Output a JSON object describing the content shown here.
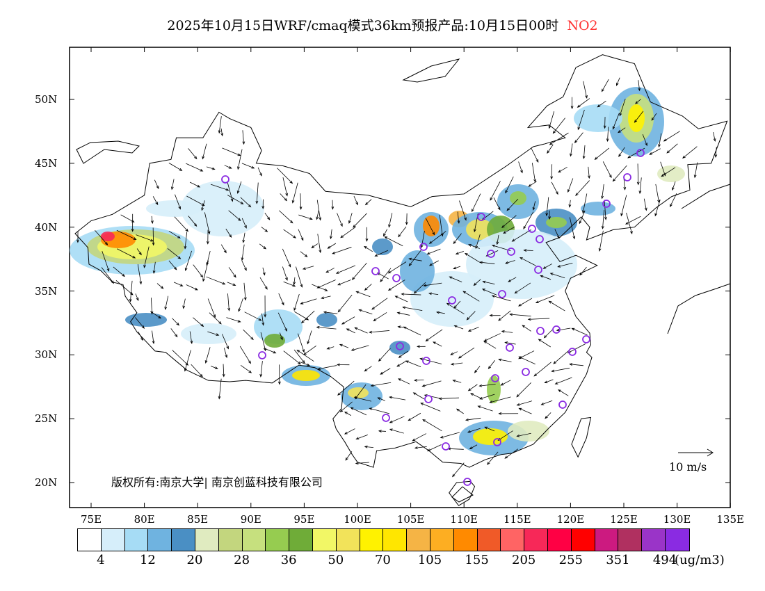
{
  "title": {
    "text": "2025年10月15日WRF/cmaq模式36km预报产品:10月15日00时",
    "pollutant": "NO2"
  },
  "map": {
    "lon_labels": [
      "75E",
      "80E",
      "85E",
      "90E",
      "95E",
      "100E",
      "105E",
      "110E",
      "115E",
      "120E",
      "125E",
      "130E",
      "135E"
    ],
    "lat_labels": [
      "50N",
      "45N",
      "40N",
      "35N",
      "30N",
      "25N",
      "20N"
    ],
    "copyright": "版权所有:南京大学| 南京创蓝科技有限公司",
    "wind_scale": "10 m/s"
  },
  "colorbar": {
    "colors": [
      "#ffffff",
      "#d6eefa",
      "#a6dcf5",
      "#6fb3e0",
      "#4a8fc4",
      "#e0ebc0",
      "#c3d67e",
      "#c6e07e",
      "#96cc50",
      "#6fac38",
      "#f2f766",
      "#f2e35a",
      "#fff200",
      "#ffe600",
      "#f5b445",
      "#fdae22",
      "#ff8a00",
      "#f05a28",
      "#ff6464",
      "#f72858",
      "#ff0044",
      "#ff0000",
      "#cc1a80",
      "#b03060",
      "#9a34c8",
      "#8a2be2"
    ],
    "labels": [
      "4",
      "12",
      "20",
      "28",
      "36",
      "50",
      "70",
      "105",
      "155",
      "205",
      "255",
      "351",
      "494"
    ],
    "unit": "(ug/m3)"
  }
}
